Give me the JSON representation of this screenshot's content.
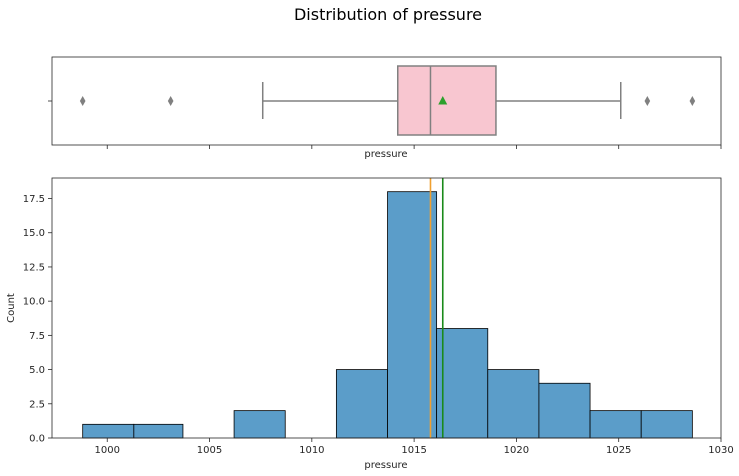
{
  "chart_data": {
    "title": "Distribution of pressure",
    "panels": [
      {
        "type": "box",
        "xlabel": "pressure",
        "box": {
          "q1": 1014.2,
          "median": 1015.8,
          "q3": 1019.0,
          "whisker_low": 1007.6,
          "whisker_high": 1025.1,
          "mean": 1016.4
        },
        "outliers": [
          998.8,
          1003.1,
          1026.4,
          1028.6
        ],
        "fill_color": "#f8c6d0",
        "mean_marker_color": "#2ca02c"
      },
      {
        "type": "histogram",
        "xlabel": "pressure",
        "ylabel": "Count",
        "bins": [
          {
            "x0": 998.8,
            "x1": 1001.3,
            "count": 1
          },
          {
            "x0": 1001.3,
            "x1": 1003.7,
            "count": 1
          },
          {
            "x0": 1003.7,
            "x1": 1006.2,
            "count": 0
          },
          {
            "x0": 1006.2,
            "x1": 1008.7,
            "count": 2
          },
          {
            "x0": 1008.7,
            "x1": 1011.2,
            "count": 0
          },
          {
            "x0": 1011.2,
            "x1": 1013.7,
            "count": 5
          },
          {
            "x0": 1013.7,
            "x1": 1016.1,
            "count": 18
          },
          {
            "x0": 1016.1,
            "x1": 1018.6,
            "count": 8
          },
          {
            "x0": 1018.6,
            "x1": 1021.1,
            "count": 5
          },
          {
            "x0": 1021.1,
            "x1": 1023.6,
            "count": 4
          },
          {
            "x0": 1023.6,
            "x1": 1026.1,
            "count": 2
          },
          {
            "x0": 1026.1,
            "x1": 1028.6,
            "count": 2
          }
        ],
        "bar_color": "#5b9dc9",
        "median_line": {
          "value": 1015.8,
          "color": "#f0a030"
        },
        "mean_line": {
          "value": 1016.4,
          "color": "#1a8a1a"
        },
        "xlim": [
          997.3,
          1030.0
        ],
        "ylim": [
          0,
          19
        ],
        "xticks": [
          "1000",
          "1005",
          "1010",
          "1015",
          "1020",
          "1025",
          "1030"
        ],
        "yticks": [
          "0.0",
          "2.5",
          "5.0",
          "7.5",
          "10.0",
          "12.5",
          "15.0",
          "17.5"
        ],
        "grid": false
      }
    ]
  }
}
